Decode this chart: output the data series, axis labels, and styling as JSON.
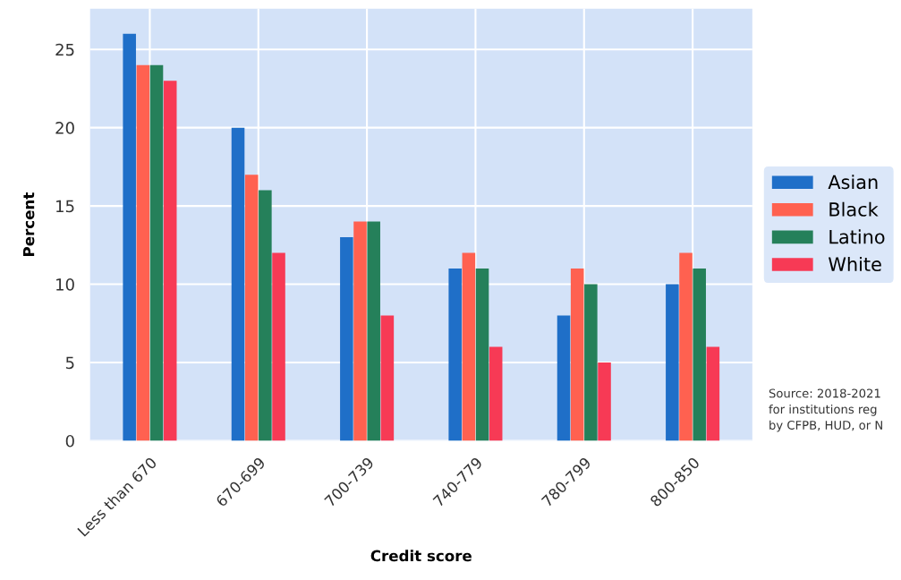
{
  "chart_data": {
    "type": "bar",
    "xlabel": "Credit score",
    "ylabel": "Percent",
    "categories": [
      "Less than 670",
      "670-699",
      "700-739",
      "740-779",
      "780-799",
      "800-850"
    ],
    "series": [
      {
        "name": "Asian",
        "color": "#1f6fc8",
        "values": [
          26,
          20,
          13,
          11,
          8,
          10
        ]
      },
      {
        "name": "Black",
        "color": "#ff6150",
        "values": [
          24,
          17,
          14,
          12,
          11,
          12
        ]
      },
      {
        "name": "Latino",
        "color": "#25805a",
        "values": [
          24,
          16,
          14,
          11,
          10,
          11
        ]
      },
      {
        "name": "White",
        "color": "#f73a55",
        "values": [
          23,
          12,
          8,
          6,
          5,
          6
        ]
      }
    ],
    "ylim": [
      0,
      27.6
    ],
    "yticks": [
      0,
      5,
      10,
      15,
      20,
      25
    ],
    "grid": true,
    "legend": "right",
    "annotations": [
      "Source: 2018-2021\nfor institutions reg\nby CFPB, HUD, or N"
    ]
  }
}
